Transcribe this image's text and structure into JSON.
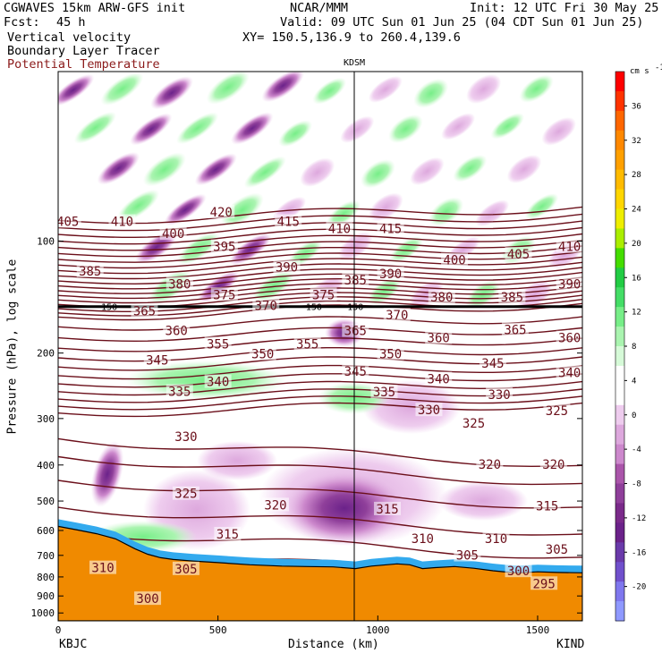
{
  "header": {
    "model": "CGWAVES 15km ARW-GFS init",
    "org": "NCAR/MMM",
    "init": "Init: 12 UTC Fri 30 May 25",
    "fcst_label": "Fcst:",
    "fcst_value": "45 h",
    "valid": "Valid: 09 UTC Sun 01 Jun 25 (04 CDT Sun 01 Jun 25)",
    "field1": "Vertical velocity",
    "xy": "XY= 150.5,136.9 to 260.4,139.6",
    "field2": "Boundary Layer Tracer",
    "field3": "Potential Temperature"
  },
  "colors": {
    "theta_line": "#6b0f1a",
    "theta_label": "#8b1a1a",
    "terrain": "#f08a00"
  },
  "chart_data": {
    "type": "heatmap",
    "title": "",
    "xlabel": "Distance (km)",
    "ylabel": "Pressure (hPa), log scale",
    "x_ticks": [
      "0",
      "500",
      "1000",
      "1500"
    ],
    "y_ticks": [
      "100",
      "200",
      "300",
      "400",
      "500",
      "600",
      "700",
      "800",
      "900",
      "1000"
    ],
    "xlim": [
      0,
      1640
    ],
    "ylim": [
      1050,
      35
    ],
    "y_scale": "log",
    "grid": false,
    "station_left": "KBJC",
    "station_right": "KIND",
    "station_mid": "KDSM",
    "station_mid_x": 930,
    "colorbar": {
      "unit": "cm s",
      "unit_exp": "-1",
      "ticks": [
        "36",
        "32",
        "28",
        "24",
        "20",
        "16",
        "12",
        "8",
        "4",
        "0",
        "-4",
        "-8",
        "-12",
        "-16",
        "-20"
      ],
      "colors": [
        "#ff0000",
        "#ff3300",
        "#ff6600",
        "#ff8800",
        "#ffa000",
        "#ffbb00",
        "#ffd600",
        "#eeee00",
        "#aaee00",
        "#44dd00",
        "#22cc44",
        "#44dd66",
        "#77ee88",
        "#aaf4b0",
        "#d6fad8",
        "#ffffff",
        "#ffffff",
        "#eeccee",
        "#dda8dd",
        "#cc88cc",
        "#aa55aa",
        "#8f3f9a",
        "#7a2a8a",
        "#6b228a",
        "#6a3aaa",
        "#7050cc",
        "#7f77ee",
        "#8f99ff"
      ]
    },
    "theta_labels": [
      {
        "text": "420",
        "x": 510,
        "p": 84
      },
      {
        "text": "415",
        "x": 720,
        "p": 89
      },
      {
        "text": "410",
        "x": 880,
        "p": 93
      },
      {
        "text": "415",
        "x": 1040,
        "p": 93
      },
      {
        "text": "405",
        "x": 30,
        "p": 89
      },
      {
        "text": "410",
        "x": 200,
        "p": 89
      },
      {
        "text": "400",
        "x": 360,
        "p": 96
      },
      {
        "text": "395",
        "x": 520,
        "p": 104
      },
      {
        "text": "390",
        "x": 715,
        "p": 118
      },
      {
        "text": "390",
        "x": 1040,
        "p": 123
      },
      {
        "text": "400",
        "x": 1240,
        "p": 113
      },
      {
        "text": "405",
        "x": 1440,
        "p": 109
      },
      {
        "text": "410",
        "x": 1600,
        "p": 104
      },
      {
        "text": "385",
        "x": 100,
        "p": 121
      },
      {
        "text": "380",
        "x": 380,
        "p": 131
      },
      {
        "text": "375",
        "x": 520,
        "p": 140
      },
      {
        "text": "370",
        "x": 650,
        "p": 150
      },
      {
        "text": "375",
        "x": 830,
        "p": 140
      },
      {
        "text": "385",
        "x": 930,
        "p": 128
      },
      {
        "text": "380",
        "x": 1200,
        "p": 142
      },
      {
        "text": "385",
        "x": 1420,
        "p": 142
      },
      {
        "text": "390",
        "x": 1600,
        "p": 131
      },
      {
        "text": "365",
        "x": 270,
        "p": 155
      },
      {
        "text": "360",
        "x": 370,
        "p": 175
      },
      {
        "text": "365",
        "x": 930,
        "p": 175
      },
      {
        "text": "370",
        "x": 1060,
        "p": 159
      },
      {
        "text": "355",
        "x": 500,
        "p": 190
      },
      {
        "text": "355",
        "x": 780,
        "p": 190
      },
      {
        "text": "360",
        "x": 1190,
        "p": 183
      },
      {
        "text": "365",
        "x": 1430,
        "p": 174
      },
      {
        "text": "360",
        "x": 1600,
        "p": 183
      },
      {
        "text": "350",
        "x": 640,
        "p": 202
      },
      {
        "text": "350",
        "x": 1040,
        "p": 202
      },
      {
        "text": "345",
        "x": 310,
        "p": 210
      },
      {
        "text": "345",
        "x": 930,
        "p": 225
      },
      {
        "text": "345",
        "x": 1360,
        "p": 214
      },
      {
        "text": "340",
        "x": 500,
        "p": 240
      },
      {
        "text": "340",
        "x": 1190,
        "p": 236
      },
      {
        "text": "340",
        "x": 1600,
        "p": 227
      },
      {
        "text": "335",
        "x": 380,
        "p": 255
      },
      {
        "text": "335",
        "x": 1020,
        "p": 256
      },
      {
        "text": "330",
        "x": 1380,
        "p": 260
      },
      {
        "text": "330",
        "x": 1160,
        "p": 286
      },
      {
        "text": "325",
        "x": 1300,
        "p": 310
      },
      {
        "text": "325",
        "x": 1560,
        "p": 287
      },
      {
        "text": "330",
        "x": 400,
        "p": 337
      },
      {
        "text": "320",
        "x": 1350,
        "p": 400
      },
      {
        "text": "320",
        "x": 1550,
        "p": 400
      },
      {
        "text": "325",
        "x": 400,
        "p": 480
      },
      {
        "text": "320",
        "x": 680,
        "p": 515
      },
      {
        "text": "315",
        "x": 1030,
        "p": 528
      },
      {
        "text": "315",
        "x": 1530,
        "p": 518
      },
      {
        "text": "315",
        "x": 530,
        "p": 617
      },
      {
        "text": "310",
        "x": 1140,
        "p": 635
      },
      {
        "text": "310",
        "x": 1370,
        "p": 635
      },
      {
        "text": "305",
        "x": 1280,
        "p": 703
      },
      {
        "text": "305",
        "x": 1560,
        "p": 678
      },
      {
        "text": "310",
        "x": 140,
        "p": 760
      },
      {
        "text": "305",
        "x": 400,
        "p": 765
      },
      {
        "text": "300",
        "x": 1440,
        "p": 775
      },
      {
        "text": "295",
        "x": 1520,
        "p": 838
      },
      {
        "text": "300",
        "x": 280,
        "p": 920
      }
    ],
    "tropopause_labels": [
      {
        "text": "150",
        "x": 160,
        "p": 150
      },
      {
        "text": "150",
        "x": 800,
        "p": 150
      },
      {
        "text": "150",
        "x": 930,
        "p": 150
      }
    ],
    "terrain_pressure": [
      [
        0,
        585
      ],
      [
        60,
        598
      ],
      [
        120,
        612
      ],
      [
        180,
        632
      ],
      [
        240,
        672
      ],
      [
        280,
        695
      ],
      [
        320,
        710
      ],
      [
        360,
        718
      ],
      [
        420,
        725
      ],
      [
        500,
        732
      ],
      [
        600,
        742
      ],
      [
        700,
        748
      ],
      [
        780,
        750
      ],
      [
        860,
        752
      ],
      [
        930,
        760
      ],
      [
        980,
        748
      ],
      [
        1060,
        738
      ],
      [
        1100,
        742
      ],
      [
        1140,
        760
      ],
      [
        1180,
        755
      ],
      [
        1240,
        750
      ],
      [
        1300,
        758
      ],
      [
        1360,
        770
      ],
      [
        1400,
        776
      ],
      [
        1440,
        780
      ],
      [
        1500,
        775
      ],
      [
        1560,
        778
      ],
      [
        1640,
        780
      ]
    ]
  }
}
